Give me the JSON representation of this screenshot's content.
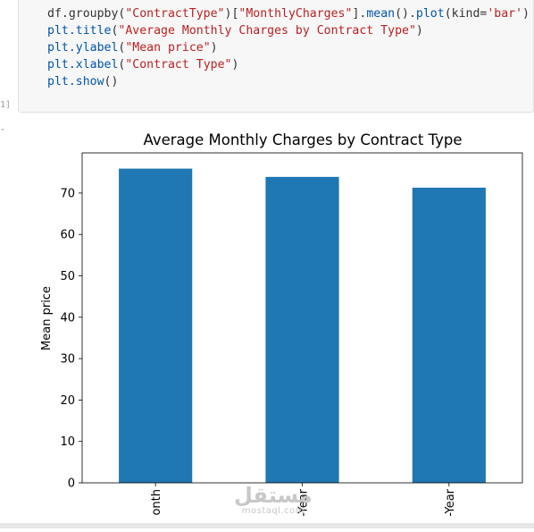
{
  "notebook": {
    "code_lines": [
      [
        [
          "df.groupby(",
          "tok-id"
        ],
        [
          "\"ContractType\"",
          "tok-str"
        ],
        [
          ")[",
          "tok-punc"
        ],
        [
          "\"MonthlyCharges\"",
          "tok-str"
        ],
        [
          "].",
          "tok-punc"
        ],
        [
          "mean",
          "tok-fn"
        ],
        [
          "().",
          "tok-punc"
        ],
        [
          "plot",
          "tok-fn"
        ],
        [
          "(kind=",
          "tok-id"
        ],
        [
          "'bar'",
          "tok-str"
        ],
        [
          ")",
          "tok-punc"
        ]
      ],
      [
        [
          "plt.",
          "tok-fn"
        ],
        [
          "title",
          "tok-fn"
        ],
        [
          "(",
          "tok-punc"
        ],
        [
          "\"Average Monthly Charges by Contract Type\"",
          "tok-str"
        ],
        [
          ")",
          "tok-punc"
        ]
      ],
      [
        [
          "plt.",
          "tok-fn"
        ],
        [
          "ylabel",
          "tok-fn"
        ],
        [
          "(",
          "tok-punc"
        ],
        [
          "\"Mean price\"",
          "tok-str"
        ],
        [
          ")",
          "tok-punc"
        ]
      ],
      [
        [
          "plt.",
          "tok-fn"
        ],
        [
          "xlabel",
          "tok-fn"
        ],
        [
          "(",
          "tok-punc"
        ],
        [
          "\"Contract Type\"",
          "tok-str"
        ],
        [
          ")",
          "tok-punc"
        ]
      ],
      [
        [
          "plt.",
          "tok-fn"
        ],
        [
          "show",
          "tok-fn"
        ],
        [
          "()",
          "tok-punc"
        ]
      ]
    ],
    "prompt_fragment": "1]",
    "output_marker": "·"
  },
  "chart_data": {
    "type": "bar",
    "title": "Average Monthly Charges by Contract Type",
    "ylabel": "Mean price",
    "xlabel": "",
    "categories": [
      "onth",
      "-Year",
      "-Year"
    ],
    "values": [
      75.9,
      73.9,
      71.3
    ],
    "ylim": [
      0,
      79.7
    ],
    "yticks": [
      0,
      10,
      20,
      30,
      40,
      50,
      60,
      70
    ],
    "bar_color": "#1f77b4",
    "grid": false,
    "legend": "none"
  },
  "watermark": {
    "arabic": "مستقل",
    "latin": "mostaql.com"
  }
}
